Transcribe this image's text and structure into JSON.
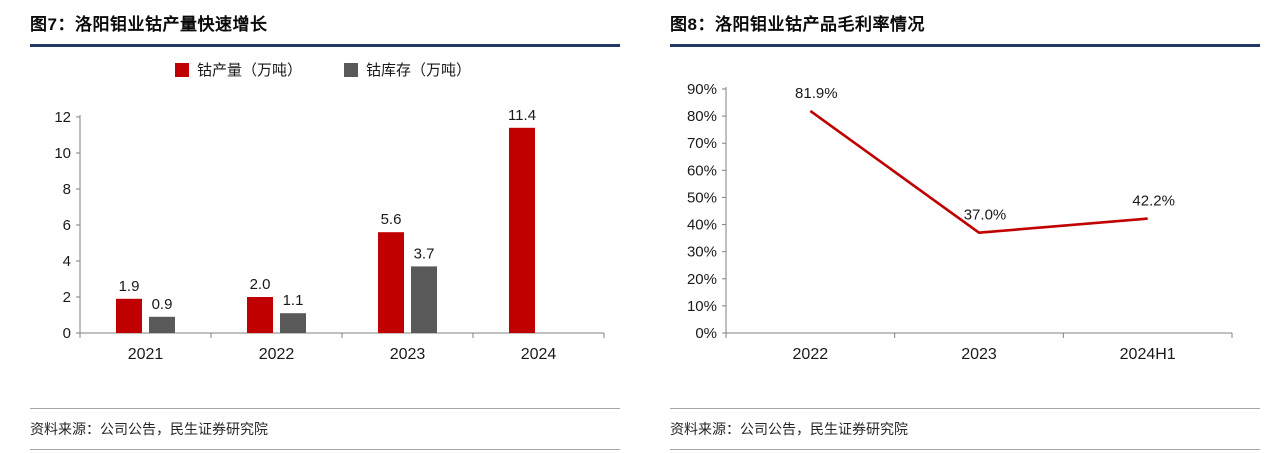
{
  "colors": {
    "accent_red": "#c00000",
    "bar_gray": "#595959",
    "title_underline": "#1f3864",
    "axis": "#808080",
    "text": "#1a1a1a"
  },
  "panels": [
    {
      "title": "图7：洛阳钼业钴产量快速增长",
      "source": "资料来源：公司公告，民生证券研究院"
    },
    {
      "title": "图8：洛阳钼业钴产品毛利率情况",
      "source": "资料来源：公司公告，民生证券研究院"
    }
  ],
  "chart_data": [
    {
      "type": "bar",
      "title": "图7：洛阳钼业钴产量快速增长",
      "categories": [
        "2021",
        "2022",
        "2023",
        "2024"
      ],
      "series": [
        {
          "name": "钴产量（万吨）",
          "color": "#c00000",
          "values": [
            1.9,
            2.0,
            5.6,
            11.4
          ]
        },
        {
          "name": "钴库存（万吨）",
          "color": "#595959",
          "values": [
            0.9,
            1.1,
            3.7,
            null
          ]
        }
      ],
      "ylim": [
        0,
        12
      ],
      "ytick_step": 2,
      "legend_position": "top",
      "grid": false
    },
    {
      "type": "line",
      "title": "图8：洛阳钼业钴产品毛利率情况",
      "categories": [
        "2022",
        "2023",
        "2024H1"
      ],
      "series": [
        {
          "name": "钴产品毛利率",
          "color": "#c00000",
          "values": [
            81.9,
            37.0,
            42.2
          ]
        }
      ],
      "data_labels": [
        "81.9%",
        "37.0%",
        "42.2%"
      ],
      "ylim": [
        0,
        90
      ],
      "ytick_step": 10,
      "ytick_format": "percent",
      "legend_position": "none",
      "grid": false
    }
  ]
}
